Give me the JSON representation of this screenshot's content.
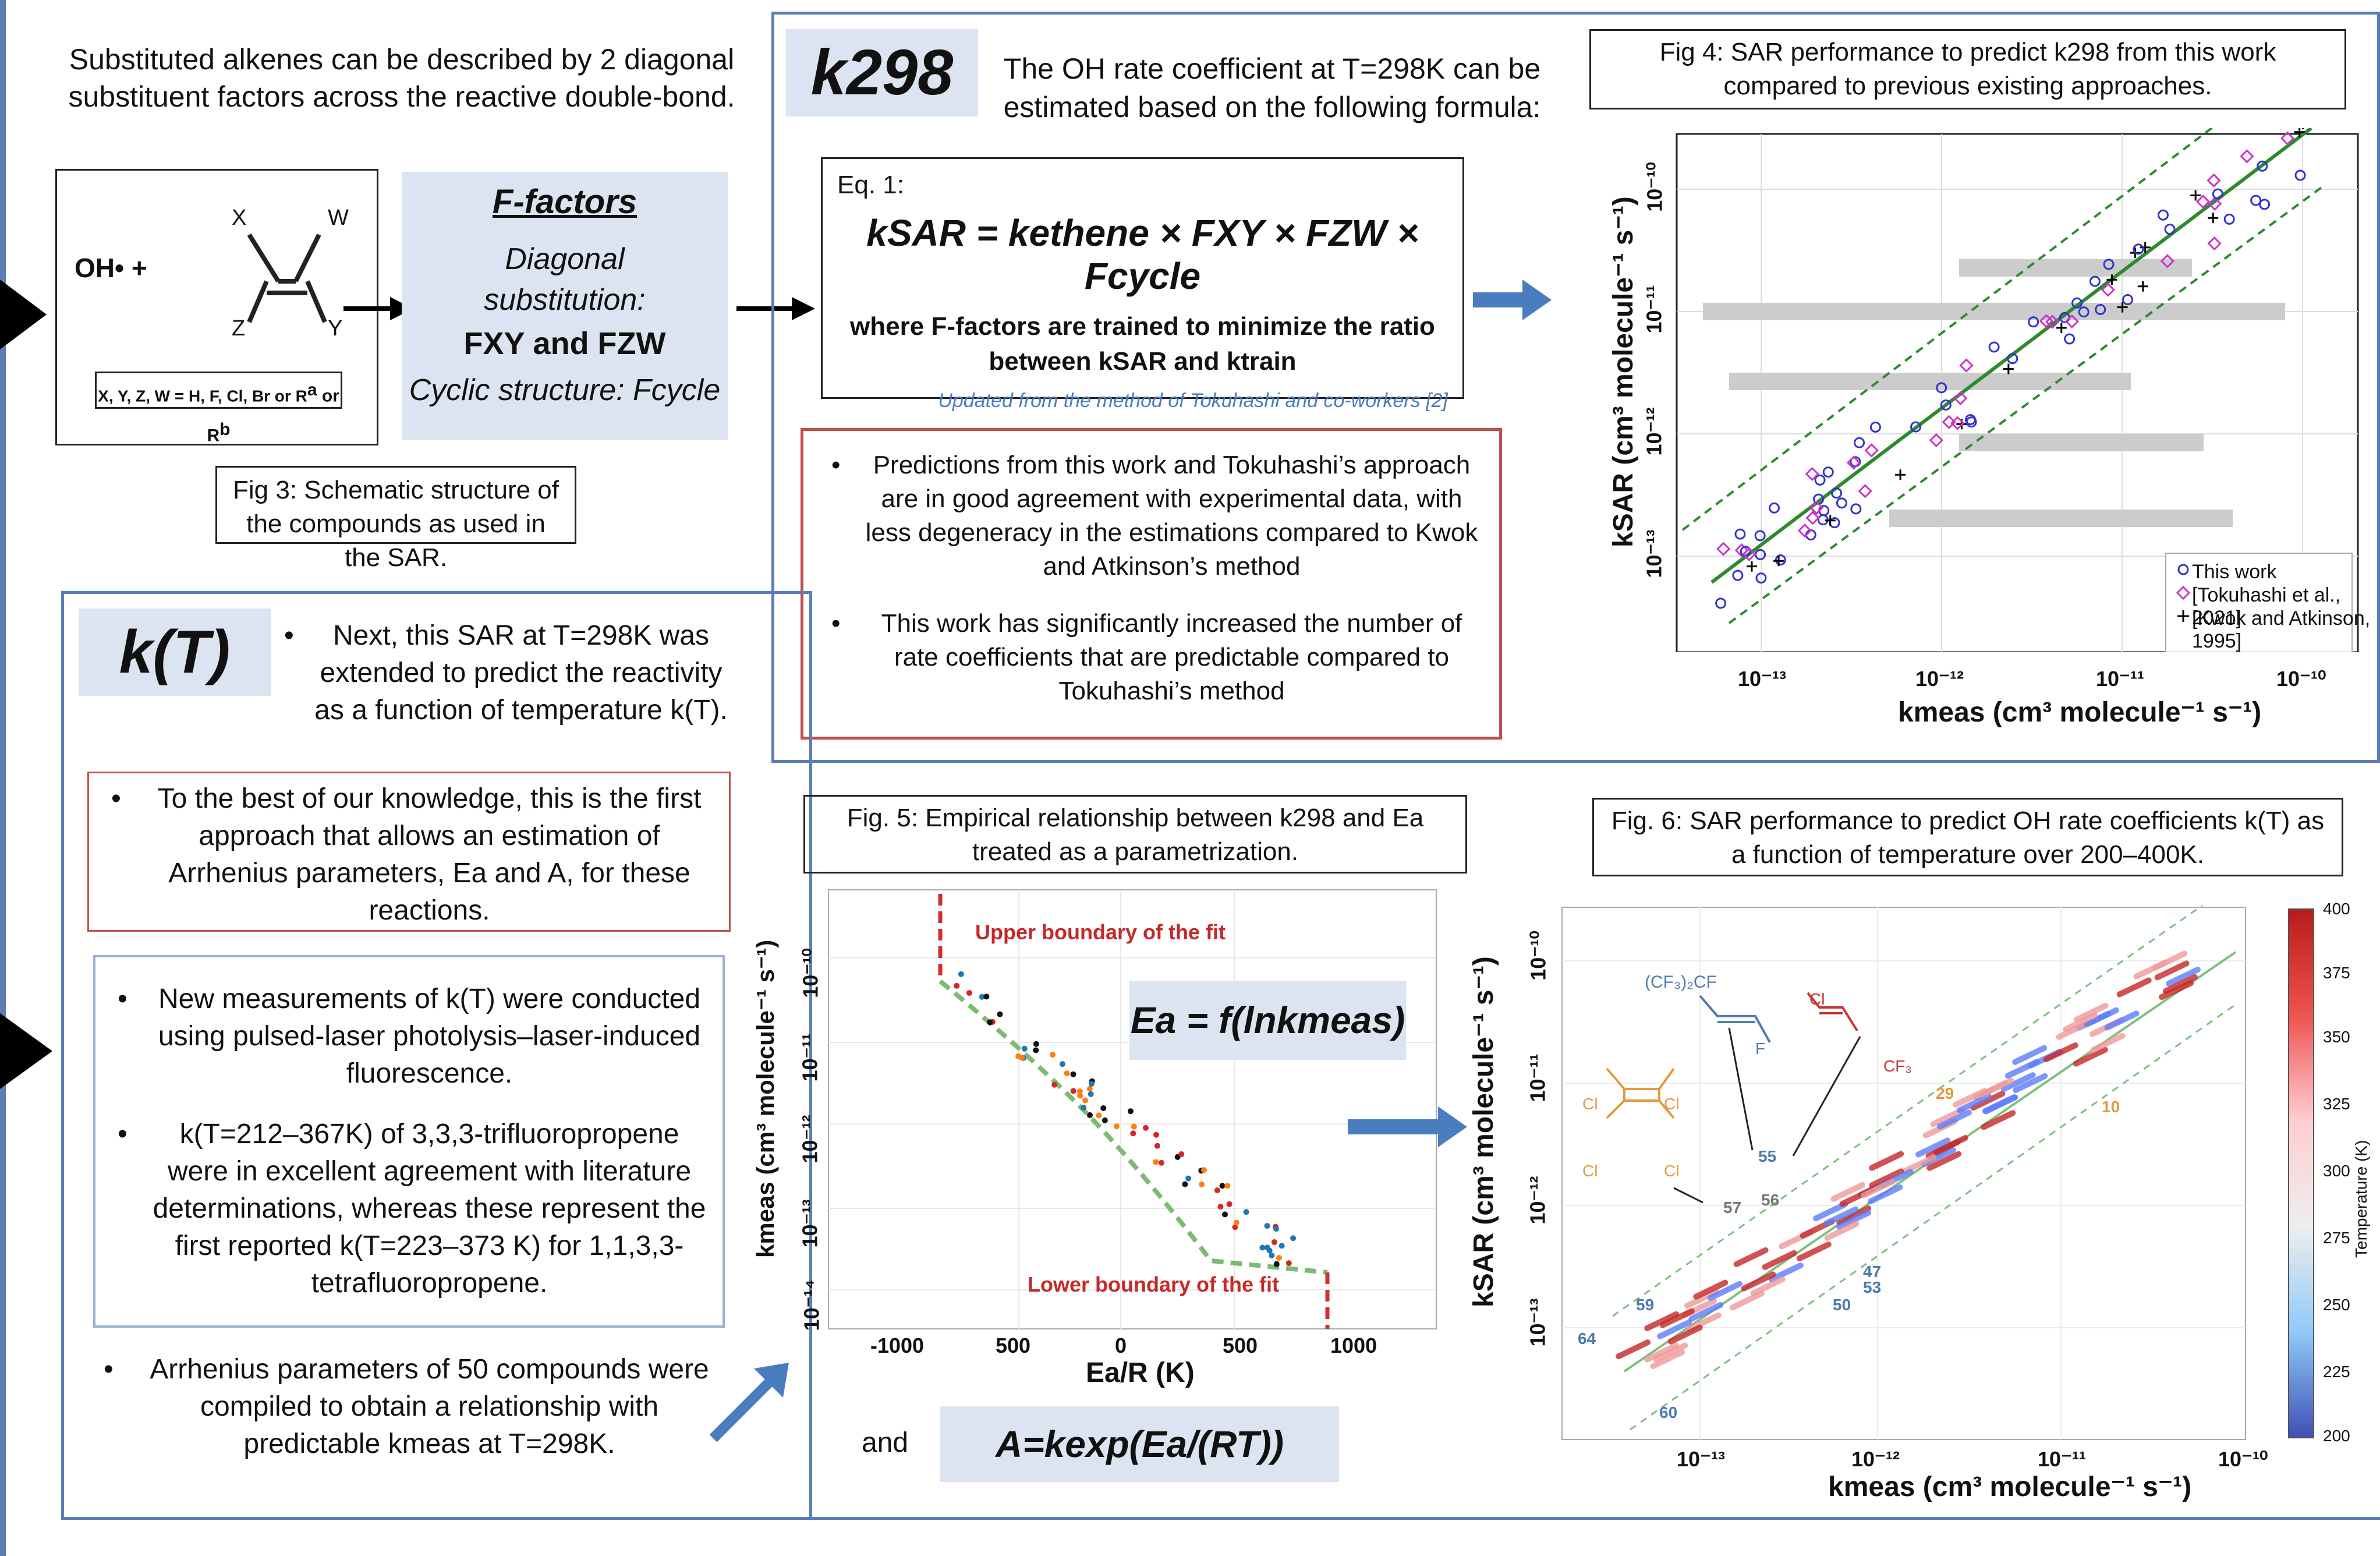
{
  "intro": {
    "text": "Substituted alkenes can be described by 2 diagonal substituent factors across the reactive double-bond."
  },
  "fig3": {
    "reactant": "OH• +",
    "substituent_labels": [
      "X",
      "W",
      "Z",
      "Y"
    ],
    "legend": "X, Y, Z, W = H, F, Cl, Br or R",
    "caption": "Fig 3: Schematic structure of the compounds as used in the SAR."
  },
  "ffactors": {
    "title": "F-factors",
    "line1": "Diagonal",
    "line2": "substitution:",
    "line3": "FXY and FZW",
    "line4": "Cyclic structure: Fcycle"
  },
  "k298": {
    "label": "k298",
    "intro": "The OH rate coefficient at T=298K can be estimated based on the following formula:",
    "eq_label": "Eq. 1:",
    "equation": "kSAR = kethene × FXY × FZW × Fcycle",
    "where": "where F-factors are trained to minimize the ratio between kSAR and ktrain",
    "credit": "Updated from the method of Tokuhashi and co-workers [2]",
    "bullets": [
      "Predictions from this work and Tokuhashi’s approach are in good agreement with experimental data, with less degeneracy in the estimations compared to Kwok and Atkinson’s method",
      "This work has significantly increased the number of rate coefficients that are predictable compared to Tokuhashi’s method"
    ]
  },
  "fig4": {
    "caption": "Fig 4: SAR performance to predict k298 from this work compared to previous existing approaches.",
    "xlabel": "kmeas (cm³ molecule⁻¹ s⁻¹)",
    "ylabel": "kSAR (cm³ molecule⁻¹ s⁻¹)",
    "x_ticks": [
      "10⁻¹³",
      "10⁻¹²",
      "10⁻¹¹",
      "10⁻¹⁰"
    ],
    "y_ticks": [
      "10⁻¹⁰",
      "10⁻¹¹",
      "10⁻¹²",
      "10⁻¹³"
    ],
    "legend": [
      "This work",
      "[Tokuhashi et al., 2021]",
      "[Kwok and Atkinson, 1995]"
    ]
  },
  "kT": {
    "label": "k(T)",
    "intro": "Next, this SAR at T=298K was extended to predict the reactivity as a function of temperature k(T).",
    "first_approach": "To the best of our knowledge, this is the first approach that allows an estimation of Arrhenius parameters, Ea and A, for these reactions.",
    "measurements": [
      "New measurements of k(T) were conducted using pulsed-laser photolysis–laser-induced fluorescence.",
      "k(T=212–367K) of 3,3,3-trifluoropropene were in excellent agreement with literature determinations, whereas these represent the first reported k(T=223–373 K) for 1,1,3,3-tetrafluoropropene."
    ],
    "arrhenius": "Arrhenius parameters of 50 compounds were compiled to obtain a relationship with predictable kmeas at T=298K."
  },
  "fig5": {
    "caption": "Fig. 5: Empirical relationship between k298 and Ea treated as a parametrization.",
    "upper": "Upper boundary of the fit",
    "lower": "Lower boundary of the fit",
    "formula": "Ea = f(lnkmeas)",
    "xlabel": "Ea/R (K)",
    "ylabel": "kmeas (cm³ molecule⁻¹ s⁻¹)",
    "x_ticks": [
      "-1000",
      "500",
      "0",
      "500",
      "1000"
    ],
    "y_ticks": [
      "10⁻¹⁰",
      "10⁻¹¹",
      "10⁻¹²",
      "10⁻¹³",
      "10⁻¹⁴"
    ],
    "and": "and",
    "a_formula": "A=kexp(Ea/(RT))"
  },
  "fig6": {
    "caption": "Fig. 6: SAR performance to predict OH rate coefficients k(T) as a function of temperature over 200–400K.",
    "xlabel": "kmeas (cm³ molecule⁻¹ s⁻¹)",
    "ylabel": "kSAR (cm³ molecule⁻¹ s⁻¹)",
    "x_ticks": [
      "10⁻¹³",
      "10⁻¹²",
      "10⁻¹¹",
      "10⁻¹⁰"
    ],
    "y_ticks": [
      "10⁻¹⁰",
      "10⁻¹¹",
      "10⁻¹²",
      "10⁻¹³"
    ],
    "colorbar_label": "Temperature (K)",
    "colorbar_ticks": [
      "400",
      "375",
      "350",
      "325",
      "300",
      "275",
      "250",
      "225",
      "200"
    ],
    "labels": [
      "29",
      "10",
      "55",
      "56",
      "57",
      "47",
      "53",
      "50",
      "59",
      "64",
      "60"
    ],
    "molecule_labels": [
      "(CF₃)₂CF",
      "F",
      "Cl",
      "CF₃",
      "Cl",
      "Cl",
      "Cl",
      "Cl"
    ]
  },
  "colors": {
    "blue_border": "#5b7fb5",
    "red_border": "#c0504d",
    "pale_blue": "#dbe4f0",
    "arrow_blue": "#4a7cc0",
    "fit_green": "#2d8a2d"
  }
}
